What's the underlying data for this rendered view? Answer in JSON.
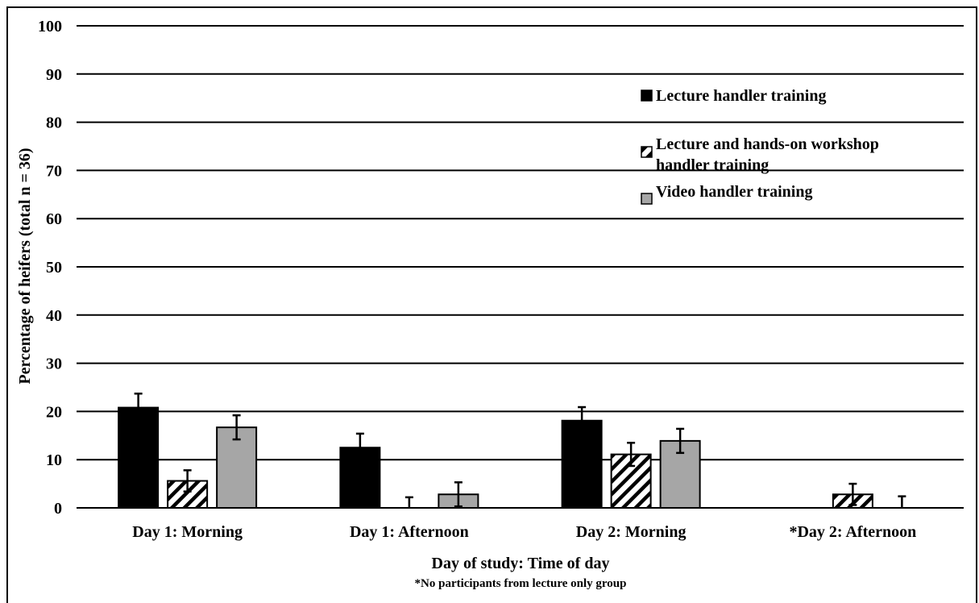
{
  "chart_data": {
    "type": "bar",
    "title": "",
    "xlabel": "Day of study: Time of day",
    "footnote": "*No participants from lecture only group",
    "ylabel": "Percentage of heifers (total n = 36)",
    "ylim": [
      0,
      100
    ],
    "yticks": [
      0,
      10,
      20,
      30,
      40,
      50,
      60,
      70,
      80,
      90,
      100
    ],
    "grid": true,
    "legend_position": "right",
    "categories": [
      "Day 1: Morning",
      "Day 1: Afternoon",
      "Day 2: Morning",
      "*Day 2: Afternoon"
    ],
    "series": [
      {
        "name": "Lecture handler training",
        "style": "solid-black",
        "color": "#000000",
        "values": [
          20.8,
          12.5,
          18.1,
          null
        ],
        "error": [
          2.9,
          2.9,
          2.8,
          null
        ]
      },
      {
        "name": "Lecture and hands-on workshop handler training",
        "legend_lines": [
          "Lecture and hands-on workshop",
          "handler training"
        ],
        "style": "hatched",
        "color": "#000000",
        "values": [
          5.6,
          0,
          11.1,
          2.8
        ],
        "error": [
          2.2,
          2.2,
          2.4,
          2.2
        ]
      },
      {
        "name": "Video handler training",
        "style": "solid-gray",
        "color": "#a6a6a6",
        "values": [
          16.7,
          2.8,
          13.9,
          0
        ],
        "error": [
          2.5,
          2.5,
          2.5,
          2.4
        ]
      }
    ]
  }
}
